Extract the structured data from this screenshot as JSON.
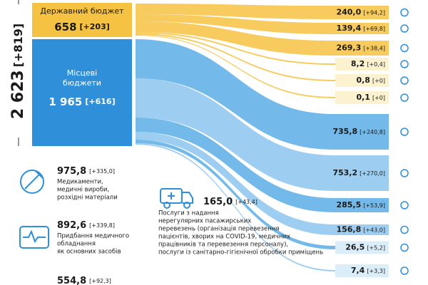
{
  "total": {
    "value": "2 623",
    "delta": "[+819]"
  },
  "state": {
    "label": "Державний бюджет",
    "value": "658",
    "delta": "[+203]"
  },
  "local": {
    "label": [
      "Місцеві",
      "бюджети"
    ],
    "value": "1 965",
    "delta": "[+616]"
  },
  "state_flows": [
    {
      "value": "240,0",
      "delta": "[+94,2]"
    },
    {
      "value": "139,4",
      "delta": "[+69,8]"
    },
    {
      "value": "269,3",
      "delta": "[+38,4]"
    },
    {
      "value": "8,2",
      "delta": "[+0,4]"
    },
    {
      "value": "0,8",
      "delta": "[+0]"
    },
    {
      "value": "0,1",
      "delta": "[+0]"
    }
  ],
  "local_flows": [
    {
      "value": "735,8",
      "delta": "[+240,8]"
    },
    {
      "value": "753,2",
      "delta": "[+270,0]"
    },
    {
      "value": "285,5",
      "delta": "[+53,9]"
    },
    {
      "value": "156,8",
      "delta": "[+43,0]"
    },
    {
      "value": "26,5",
      "delta": "[+5,2]"
    },
    {
      "value": "7,4",
      "delta": "[+3,3]"
    }
  ],
  "legend": [
    {
      "value": "975,8",
      "delta": "[+335,0]",
      "lines": [
        "Медикаменти,",
        "медичні вироби,",
        "розхідні матеріали"
      ]
    },
    {
      "value": "892,6",
      "delta": "[+339,8]",
      "lines": [
        "Придбання медичного",
        "обладнання",
        "як основних засобів"
      ]
    },
    {
      "value": "554,8",
      "delta": "[+92,3]",
      "lines": []
    }
  ],
  "transport": {
    "value": "165,0",
    "delta": "[+43,4]",
    "lines": [
      "Послуги з надання",
      "нерегулярних пасажирських",
      "перевезень (організація перевезення",
      "пацієнтів, хворих на COVID-19, медичних",
      "працівників та перевезення персоналу),",
      "послуги із санітарно-гігієнічної обробки приміщень"
    ]
  }
}
